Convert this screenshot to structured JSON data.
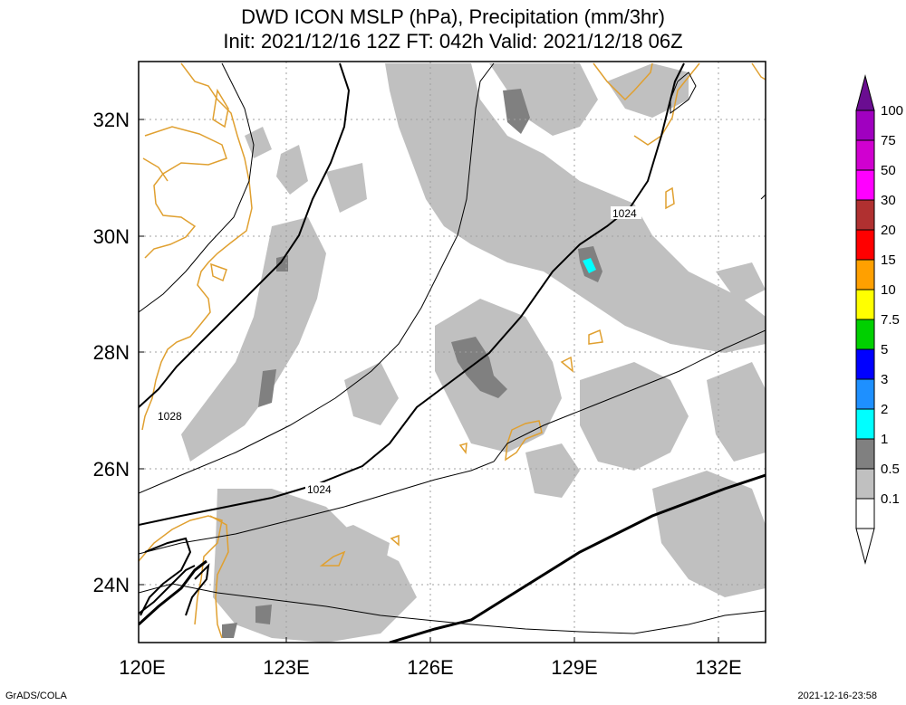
{
  "header": {
    "title_line1": "DWD ICON MSLP (hPa), Precipitation (mm/3hr)",
    "title_line2": "Init: 2021/12/16 12Z  FT: 042h  Valid: 2021/12/18 06Z"
  },
  "map": {
    "lon_labels": [
      "120E",
      "123E",
      "126E",
      "129E",
      "132E"
    ],
    "lat_labels": [
      "32N",
      "30N",
      "28N",
      "26N",
      "24N"
    ],
    "isobar_labels": [
      "1028",
      "1024",
      "1024"
    ],
    "coast_color": "#e0a030",
    "grid": "dotted"
  },
  "colorbar": {
    "labels": [
      "100",
      "75",
      "50",
      "30",
      "20",
      "15",
      "10",
      "7.5",
      "5",
      "3",
      "2",
      "1",
      "0.5",
      "0.1"
    ],
    "colors": [
      "#6a0d91",
      "#a000c0",
      "#d000d0",
      "#ff00ff",
      "#b03030",
      "#ff0000",
      "#ffa000",
      "#ffff00",
      "#00d000",
      "#0000ff",
      "#1e90ff",
      "#00ffff",
      "#808080",
      "#c0c0c0",
      "#ffffff"
    ]
  },
  "footer": {
    "left": "GrADS/COLA",
    "right": "2021-12-16-23:58"
  }
}
